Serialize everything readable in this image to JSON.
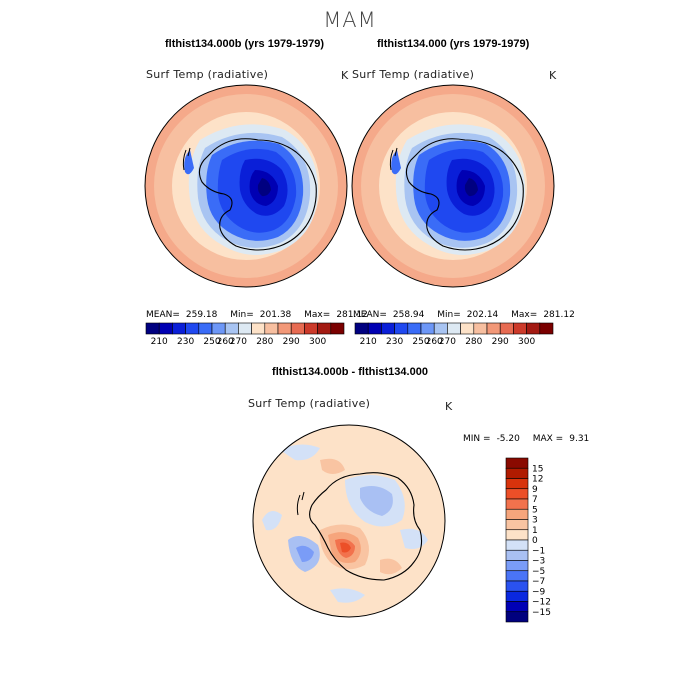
{
  "season_title": "MAM",
  "panels": [
    {
      "title": "flthist134.000b (yrs 1979-1979)",
      "variable": "Surf Temp (radiative)",
      "unit": "K",
      "mean_label": "MEAN=",
      "mean": "259.18",
      "min_label": "Min=",
      "min": "201.38",
      "max_label": "Max=",
      "max": "281.12"
    },
    {
      "title": "flthist134.000 (yrs 1979-1979)",
      "variable": "Surf Temp (radiative)",
      "unit": "K",
      "mean_label": "MEAN=",
      "mean": "258.94",
      "min_label": "Min=",
      "min": "202.14",
      "max_label": "Max=",
      "max": "281.12"
    }
  ],
  "diff": {
    "title": "flthist134.000b - flthist134.000",
    "variable": "Surf Temp (radiative)",
    "unit": "K",
    "min_label": "MIN =",
    "min": "-5.20",
    "max_label": "MAX =",
    "max": "9.31"
  },
  "colors": {
    "abs_scale": [
      "#000080",
      "#0000b3",
      "#0a1fd8",
      "#1f48f0",
      "#3a6cf7",
      "#6d97f7",
      "#a8c4f2",
      "#dde9f3",
      "#fde2c8",
      "#f7bfa0",
      "#f29878",
      "#e76b52",
      "#cc3a2a",
      "#a31a12",
      "#7a0000"
    ],
    "diff_scale": [
      "#00007e",
      "#0000b5",
      "#0a28e0",
      "#2a52f0",
      "#4a74f6",
      "#7a9cf7",
      "#a9c0f3",
      "#d3e1f7",
      "#fde2c8",
      "#f9c4a2",
      "#f6a57c",
      "#f2724d",
      "#ec4f28",
      "#d8330c",
      "#b01b00",
      "#8a0a00"
    ],
    "land_outline": "#000000"
  },
  "chart_data": [
    {
      "type": "heatmap",
      "projection": "south polar stereographic",
      "title": "flthist134.000b (yrs 1979-1979)",
      "variable": "Surf Temp (radiative)",
      "unit": "K",
      "mean": 259.18,
      "min": 201.38,
      "max": 281.12,
      "colorbar_ticks": [
        "210",
        "230",
        "250",
        "260",
        "270",
        "280",
        "290",
        "300"
      ],
      "colorbar_levels": [
        210,
        220,
        230,
        240,
        250,
        255,
        260,
        265,
        270,
        275,
        280,
        285,
        290,
        295,
        300
      ]
    },
    {
      "type": "heatmap",
      "projection": "south polar stereographic",
      "title": "flthist134.000 (yrs 1979-1979)",
      "variable": "Surf Temp (radiative)",
      "unit": "K",
      "mean": 258.94,
      "min": 202.14,
      "max": 281.12,
      "colorbar_ticks": [
        "210",
        "230",
        "250",
        "260",
        "270",
        "280",
        "290",
        "300"
      ],
      "colorbar_levels": [
        210,
        220,
        230,
        240,
        250,
        255,
        260,
        265,
        270,
        275,
        280,
        285,
        290,
        295,
        300
      ]
    },
    {
      "type": "heatmap",
      "projection": "south polar stereographic",
      "title": "flthist134.000b - flthist134.000",
      "variable": "Surf Temp (radiative)",
      "unit": "K",
      "min": -5.2,
      "max": 9.31,
      "colorbar_ticks": [
        "15",
        "12",
        "9",
        "7",
        "5",
        "3",
        "1",
        "0",
        "−1",
        "−3",
        "−5",
        "−7",
        "−9",
        "−12",
        "−15"
      ],
      "colorbar_levels": [
        -15,
        -12,
        -9,
        -7,
        -5,
        -3,
        -1,
        0,
        1,
        3,
        5,
        7,
        9,
        12,
        15
      ]
    }
  ]
}
